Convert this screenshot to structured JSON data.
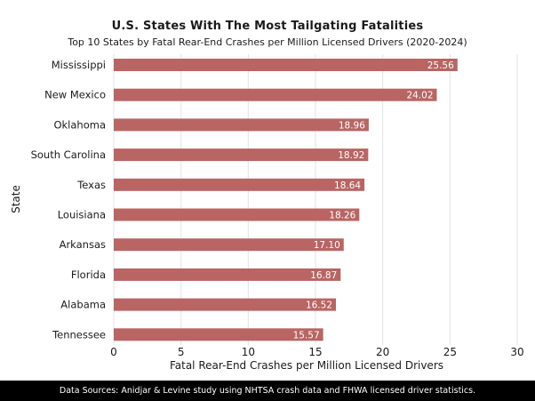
{
  "title": "U.S. States With The Most Tailgating Fatalities",
  "subtitle": "Top 10 States by Fatal Rear-End Crashes per Million Licensed Drivers (2020-2024)",
  "footer": "Data Sources: Anidjar & Levine study using NHTSA crash data and FHWA licensed driver statistics.",
  "colors": {
    "bar": "#b86563",
    "grid": "#e3e3e3",
    "text": "#1a1a1a",
    "footer_bg": "#000000"
  },
  "chart_data": {
    "type": "bar",
    "orientation": "horizontal",
    "title": "U.S. States With The Most Tailgating Fatalities",
    "subtitle": "Top 10 States by Fatal Rear-End Crashes per Million Licensed Drivers (2020-2024)",
    "xlabel": "Fatal Rear-End Crashes per Million Licensed Drivers",
    "ylabel": "State",
    "xlim": [
      0,
      30
    ],
    "xticks": [
      0,
      5,
      10,
      15,
      20,
      25,
      30
    ],
    "grid": "vertical",
    "categories": [
      "Mississippi",
      "New Mexico",
      "Oklahoma",
      "South Carolina",
      "Texas",
      "Louisiana",
      "Arkansas",
      "Florida",
      "Alabama",
      "Tennessee"
    ],
    "values": [
      25.56,
      24.02,
      18.96,
      18.92,
      18.64,
      18.26,
      17.1,
      16.87,
      16.52,
      15.57
    ],
    "value_labels": [
      "25.56",
      "24.02",
      "18.96",
      "18.92",
      "18.64",
      "18.26",
      "17.10",
      "16.87",
      "16.52",
      "15.57"
    ]
  }
}
